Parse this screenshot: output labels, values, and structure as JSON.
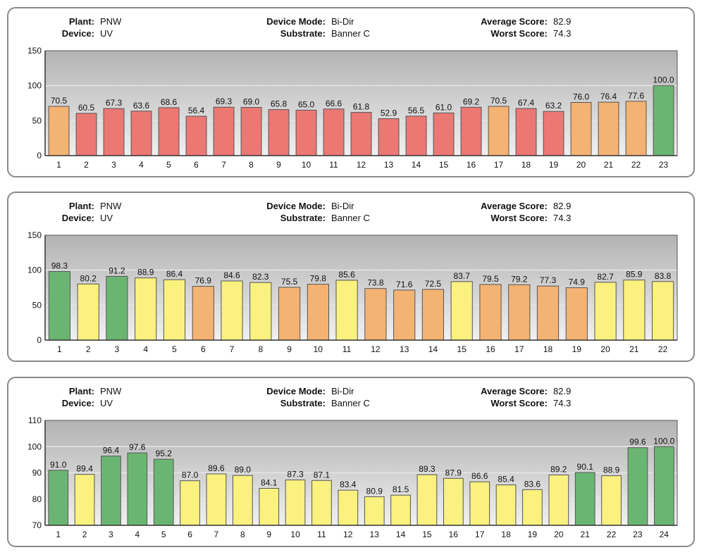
{
  "colors": {
    "green": "#6bb573",
    "yellow": "#faf17e",
    "orange": "#f4b273",
    "red": "#ec7874",
    "panel_border": "#8a8a8a",
    "plot_top": "#b3b3b3",
    "plot_bottom": "#f0f0f0"
  },
  "panels": [
    {
      "header": {
        "plant_label": "Plant:",
        "plant": "PNW",
        "device_label": "Device:",
        "device": "UV",
        "device_mode_label": "Device Mode:",
        "device_mode": "Bi-Dir",
        "substrate_label": "Substrate:",
        "substrate": "Banner C",
        "average_label": "Average Score:",
        "average": "82.9",
        "worst_label": "Worst Score:",
        "worst": "74.3"
      }
    },
    {
      "header": {
        "plant_label": "Plant:",
        "plant": "PNW",
        "device_label": "Device:",
        "device": "UV",
        "device_mode_label": "Device Mode:",
        "device_mode": "Bi-Dir",
        "substrate_label": "Substrate:",
        "substrate": "Banner C",
        "average_label": "Average Score:",
        "average": "82.9",
        "worst_label": "Worst Score:",
        "worst": "74.3"
      }
    },
    {
      "header": {
        "plant_label": "Plant:",
        "plant": "PNW",
        "device_label": "Device:",
        "device": "UV",
        "device_mode_label": "Device Mode:",
        "device_mode": "Bi-Dir",
        "substrate_label": "Substrate:",
        "substrate": "Banner C",
        "average_label": "Average Score:",
        "average": "82.9",
        "worst_label": "Worst Score:",
        "worst": "74.3"
      }
    }
  ],
  "chart_data": [
    {
      "type": "bar",
      "title": "",
      "xlabel": "",
      "ylabel": "",
      "ylim": [
        0,
        150
      ],
      "yticks": [
        0,
        50,
        100,
        150
      ],
      "grid": true,
      "legend": "none",
      "categories": [
        "1",
        "2",
        "3",
        "4",
        "5",
        "6",
        "7",
        "8",
        "9",
        "10",
        "11",
        "12",
        "13",
        "14",
        "15",
        "16",
        "17",
        "18",
        "19",
        "20",
        "21",
        "22",
        "23"
      ],
      "values": [
        70.5,
        60.5,
        67.3,
        63.6,
        68.6,
        56.4,
        69.3,
        69.0,
        65.8,
        65.0,
        66.6,
        61.8,
        52.9,
        56.5,
        61.0,
        69.2,
        70.5,
        67.4,
        63.2,
        76.0,
        76.4,
        77.6,
        100.0
      ],
      "labels": [
        "70.5",
        "60.5",
        "67.3",
        "63.6",
        "68.6",
        "56.4",
        "69.3",
        "69.0",
        "65.8",
        "65.0",
        "66.6",
        "61.8",
        "52.9",
        "56.5",
        "61.0",
        "69.2",
        "70.5",
        "67.4",
        "63.2",
        "76.0",
        "76.4",
        "77.6",
        "100.0"
      ],
      "bar_colors": [
        "orange",
        "red",
        "red",
        "red",
        "red",
        "red",
        "red",
        "red",
        "red",
        "red",
        "red",
        "red",
        "red",
        "red",
        "red",
        "red",
        "orange",
        "red",
        "red",
        "orange",
        "orange",
        "orange",
        "green"
      ]
    },
    {
      "type": "bar",
      "title": "",
      "xlabel": "",
      "ylabel": "",
      "ylim": [
        0,
        150
      ],
      "yticks": [
        0,
        50,
        100,
        150
      ],
      "grid": true,
      "legend": "none",
      "categories": [
        "1",
        "2",
        "3",
        "4",
        "5",
        "6",
        "7",
        "8",
        "9",
        "10",
        "11",
        "12",
        "13",
        "14",
        "15",
        "16",
        "17",
        "18",
        "19",
        "20",
        "21",
        "22"
      ],
      "values": [
        98.3,
        80.2,
        91.2,
        88.9,
        86.4,
        76.9,
        84.6,
        82.3,
        75.5,
        79.8,
        85.6,
        73.8,
        71.6,
        72.5,
        83.7,
        79.5,
        79.2,
        77.3,
        74.9,
        82.7,
        85.9,
        83.8
      ],
      "labels": [
        "98.3",
        "80.2",
        "91.2",
        "88.9",
        "86.4",
        "76.9",
        "84.6",
        "82.3",
        "75.5",
        "79.8",
        "85.6",
        "73.8",
        "71.6",
        "72.5",
        "83.7",
        "79.5",
        "79.2",
        "77.3",
        "74.9",
        "82.7",
        "85.9",
        "83.8"
      ],
      "bar_colors": [
        "green",
        "yellow",
        "green",
        "yellow",
        "yellow",
        "orange",
        "yellow",
        "yellow",
        "orange",
        "orange",
        "yellow",
        "orange",
        "orange",
        "orange",
        "yellow",
        "orange",
        "orange",
        "orange",
        "orange",
        "yellow",
        "yellow",
        "yellow"
      ]
    },
    {
      "type": "bar",
      "title": "",
      "xlabel": "",
      "ylabel": "",
      "ylim": [
        70,
        110
      ],
      "yticks": [
        70,
        80,
        90,
        100,
        110
      ],
      "grid": true,
      "legend": "none",
      "categories": [
        "1",
        "2",
        "3",
        "4",
        "5",
        "6",
        "7",
        "8",
        "9",
        "10",
        "11",
        "12",
        "13",
        "14",
        "15",
        "16",
        "17",
        "18",
        "19",
        "20",
        "21",
        "22",
        "23",
        "24"
      ],
      "values": [
        91.0,
        89.4,
        96.4,
        97.6,
        95.2,
        87.0,
        89.6,
        89.0,
        84.1,
        87.3,
        87.1,
        83.4,
        80.9,
        81.5,
        89.3,
        87.9,
        86.6,
        85.4,
        83.6,
        89.2,
        90.1,
        88.9,
        99.6,
        100.0
      ],
      "labels": [
        "91.0",
        "89.4",
        "96.4",
        "97.6",
        "95.2",
        "87.0",
        "89.6",
        "89.0",
        "84.1",
        "87.3",
        "87.1",
        "83.4",
        "80.9",
        "81.5",
        "89.3",
        "87.9",
        "86.6",
        "85.4",
        "83.6",
        "89.2",
        "90.1",
        "88.9",
        "99.6",
        "100.0"
      ],
      "bar_colors": [
        "green",
        "yellow",
        "green",
        "green",
        "green",
        "yellow",
        "yellow",
        "yellow",
        "yellow",
        "yellow",
        "yellow",
        "yellow",
        "yellow",
        "yellow",
        "yellow",
        "yellow",
        "yellow",
        "yellow",
        "yellow",
        "yellow",
        "green",
        "yellow",
        "green",
        "green"
      ]
    }
  ]
}
